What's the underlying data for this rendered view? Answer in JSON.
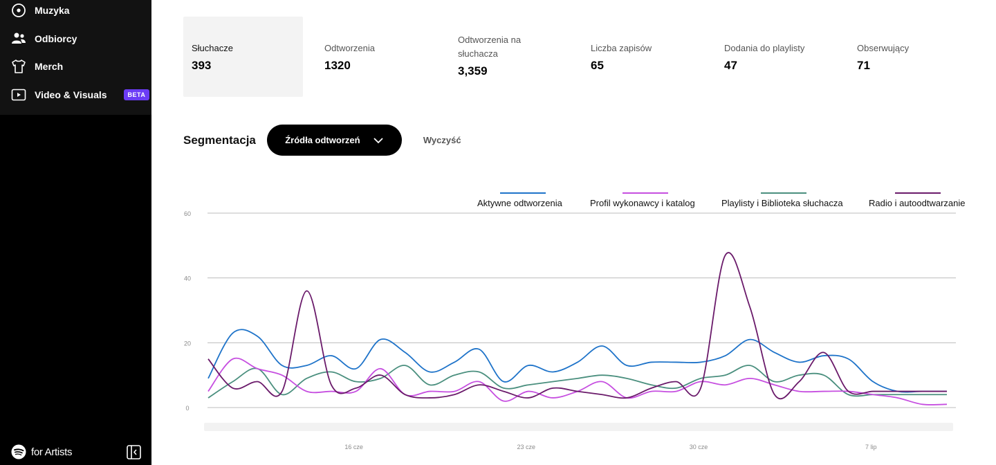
{
  "sidebar": {
    "items": [
      {
        "label": "Muzyka",
        "icon": "music-disc-icon"
      },
      {
        "label": "Odbiorcy",
        "icon": "audience-icon"
      },
      {
        "label": "Merch",
        "icon": "tshirt-icon"
      },
      {
        "label": "Video & Visuals",
        "icon": "video-icon",
        "badge": "BETA"
      }
    ],
    "brand": "for Artists"
  },
  "stats": [
    {
      "label": "Słuchacze",
      "value": "393"
    },
    {
      "label": "Odtworzenia",
      "value": "1320"
    },
    {
      "label": "Odtworzenia na słuchacza",
      "value": "3,359"
    },
    {
      "label": "Liczba zapisów",
      "value": "65"
    },
    {
      "label": "Dodania do playlisty",
      "value": "47"
    },
    {
      "label": "Obserwujący",
      "value": "71"
    }
  ],
  "segment": {
    "title": "Segmentacja",
    "dropdown_label": "Źródła odtworzeń",
    "clear_label": "Wyczyść"
  },
  "colors": {
    "accent_beta": "#6b3cf5",
    "series_active": "#1e73c9",
    "series_profile": "#c64ee0",
    "series_playlist": "#4a8f7e",
    "series_radio": "#6a1a6a"
  },
  "chart_data": {
    "type": "line",
    "ylim": [
      0,
      60
    ],
    "yticks": [
      "0",
      "20",
      "40",
      "60"
    ],
    "xticks": [
      {
        "label": "16 cze",
        "index": 6
      },
      {
        "label": "23 cze",
        "index": 13
      },
      {
        "label": "30 cze",
        "index": 20
      },
      {
        "label": "7 lip",
        "index": 27
      }
    ],
    "n_points": 31,
    "series": [
      {
        "name": "Aktywne odtworzenia",
        "color": "#1e73c9",
        "values": [
          9,
          23,
          22,
          13,
          13,
          16,
          12,
          21,
          17,
          11,
          14,
          18,
          8,
          13,
          11,
          14,
          19,
          13,
          14,
          14,
          14,
          16,
          21,
          17,
          14,
          16,
          15,
          8,
          5,
          5,
          5
        ]
      },
      {
        "name": "Profil wykonawcy i katalog",
        "color": "#c64ee0",
        "values": [
          5,
          15,
          12,
          10,
          5,
          5,
          5,
          12,
          4,
          5,
          5,
          8,
          2,
          5,
          3,
          5,
          8,
          3,
          5,
          5,
          8,
          7,
          9,
          7,
          5,
          5,
          5,
          4,
          3,
          1,
          1
        ]
      },
      {
        "name": "Playlisty i Biblioteka słuchacza",
        "color": "#4a8f7e",
        "values": [
          3,
          8,
          12,
          4,
          9,
          11,
          8,
          9,
          13,
          7,
          10,
          11,
          6,
          7,
          8,
          9,
          10,
          9,
          7,
          6,
          9,
          10,
          13,
          8,
          10,
          10,
          4,
          4,
          4,
          4,
          4
        ]
      },
      {
        "name": "Radio i autoodtwarzanie",
        "color": "#6a1a6a",
        "values": [
          15,
          6,
          8,
          5,
          36,
          7,
          6,
          10,
          4,
          3,
          4,
          7,
          5,
          3,
          6,
          5,
          4,
          3,
          6,
          8,
          6,
          47,
          31,
          4,
          8,
          17,
          5,
          5,
          5,
          5,
          5
        ]
      }
    ]
  }
}
